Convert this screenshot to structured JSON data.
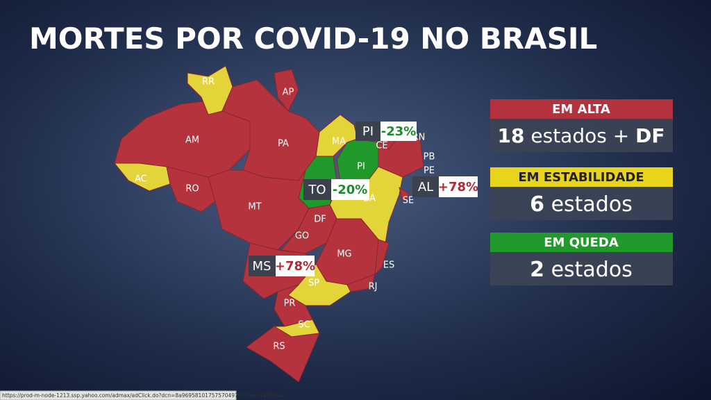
{
  "title": "MORTES POR COVID-19 NO BRASIL",
  "map": {
    "labels": [
      "RR",
      "AP",
      "AM",
      "PA",
      "MA",
      "CE",
      "RN",
      "PB",
      "PE",
      "SE",
      "AC",
      "RO",
      "MT",
      "DF",
      "GO",
      "MG",
      "ES",
      "RJ",
      "SP",
      "PR",
      "SC",
      "RS",
      "PI",
      "BA"
    ]
  },
  "callouts": [
    {
      "state": "PI",
      "change": "-23%"
    },
    {
      "state": "TO",
      "change": "-20%"
    },
    {
      "state": "AL",
      "change": "+78%"
    },
    {
      "state": "MS",
      "change": "+78%"
    }
  ],
  "legend": [
    {
      "heading": "EM ALTA",
      "count": "18",
      "text": "estados +",
      "extra": "DF"
    },
    {
      "heading": "EM ESTABILIDADE",
      "count": "6",
      "text": "estados"
    },
    {
      "heading": "EM QUEDA",
      "count": "2",
      "text": "estados"
    }
  ],
  "status_url": "https://prod-m-node-1213.ssp.yahoo.com/admax/adClick.do?dcn=8a9695810175757049717f1dcb44500aa..."
}
